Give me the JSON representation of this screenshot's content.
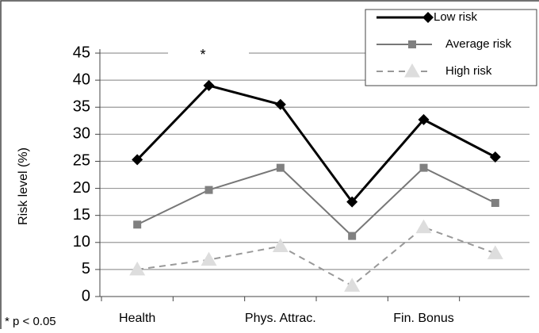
{
  "chart_data": {
    "type": "line",
    "y_label": "Risk level (%)",
    "annotations": [
      "*",
      "* p < 0.05"
    ],
    "categories": [
      "Health",
      null,
      "Phys. Attrac.",
      null,
      "Fin. Bonus",
      null
    ],
    "series": [
      {
        "name": "Low risk",
        "color": "#000000",
        "marker": "diamond",
        "dashed": false,
        "values": [
          25.3,
          39,
          35.5,
          17.5,
          32.7,
          25.8
        ]
      },
      {
        "name": "Average risk",
        "color": "#777777",
        "marker": "square",
        "dashed": false,
        "values": [
          13.3,
          19.7,
          23.8,
          11.2,
          23.8,
          17.3
        ]
      },
      {
        "name": "High risk",
        "color": "#999999",
        "marker": "triangle",
        "dashed": true,
        "values": [
          5,
          6.8,
          9.3,
          2,
          12.8,
          8
        ]
      }
    ],
    "ylim": [
      0,
      45
    ],
    "yticks": [
      0,
      5,
      10,
      15,
      20,
      25,
      30,
      35,
      40,
      45
    ],
    "grid": true,
    "legend": "upper right"
  }
}
